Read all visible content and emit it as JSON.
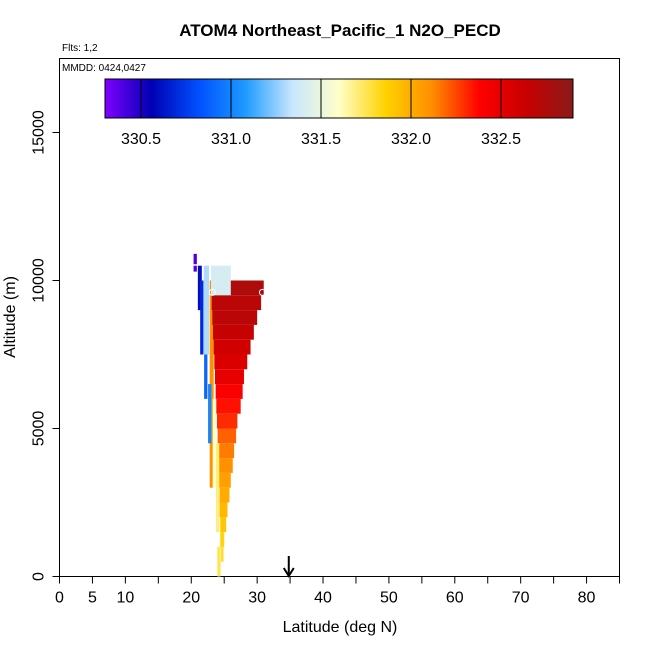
{
  "chart_data": {
    "type": "heatmap",
    "title": "ATOM4 Northeast_Pacific_1 N2O_PECD",
    "flights_note": "Flts: 1,2",
    "dates_note": "MMDD: 0424,0427",
    "xlabel": "Latitude (deg N)",
    "ylabel": "Altitude (m)",
    "xlim": [
      0,
      85
    ],
    "ylim": [
      0,
      17500
    ],
    "x_ticks": [
      0,
      5,
      10,
      20,
      30,
      40,
      50,
      60,
      70,
      80
    ],
    "x_minor_ticks": [
      15,
      25,
      35,
      45,
      55,
      65,
      75,
      85
    ],
    "y_ticks": [
      0,
      5000,
      10000,
      15000
    ],
    "colorbar": {
      "min": 330.3,
      "max": 332.9,
      "ticks": [
        330.5,
        331.0,
        331.5,
        332.0,
        332.5
      ],
      "tick_labels": [
        "330.5",
        "331.0",
        "331.5",
        "332.0",
        "332.5"
      ],
      "colors": [
        "#7f00ff",
        "#0000b4",
        "#0050ff",
        "#1e9bff",
        "#c8e6ff",
        "#ffffc8",
        "#ffd200",
        "#ff8c00",
        "#ff0000",
        "#c80000",
        "#8b1a1a"
      ]
    },
    "marker": {
      "latitude": 34.8,
      "label": "down arrow"
    },
    "series": [
      {
        "bins": [
          {
            "lat": 20.6,
            "alt_lo": 10550,
            "alt_hi": 10900,
            "value": 330.4,
            "w": 0.5
          },
          {
            "lat": 20.6,
            "alt_lo": 10300,
            "alt_hi": 10500,
            "value": 330.4,
            "w": 0.5
          },
          {
            "lat": 21.3,
            "alt_lo": 9000,
            "alt_hi": 10500,
            "value": 330.6,
            "w": 0.6
          },
          {
            "lat": 21.6,
            "alt_lo": 7500,
            "alt_hi": 10000,
            "value": 330.7,
            "w": 0.5
          },
          {
            "lat": 22.2,
            "alt_lo": 6000,
            "alt_hi": 8000,
            "value": 330.9,
            "w": 0.5
          },
          {
            "lat": 22.8,
            "alt_lo": 4500,
            "alt_hi": 6500,
            "value": 331.0,
            "w": 0.5
          },
          {
            "lat": 22.3,
            "alt_lo": 7500,
            "alt_hi": 10500,
            "value": 331.3,
            "w": 0.8
          },
          {
            "lat": 24.5,
            "alt_lo": 9500,
            "alt_hi": 10500,
            "value": 331.4,
            "w": 3.0
          },
          {
            "lat": 23.5,
            "alt_lo": 3000,
            "alt_hi": 6000,
            "value": 331.6,
            "w": 0.5
          },
          {
            "lat": 24.0,
            "alt_lo": 1500,
            "alt_hi": 4500,
            "value": 331.7,
            "w": 0.5
          },
          {
            "lat": 24.2,
            "alt_lo": 0,
            "alt_hi": 1000,
            "value": 331.75,
            "w": 0.5
          }
        ],
        "columns": [
          {
            "lat_lo": 22.8,
            "lat_hi": 23.4,
            "alt_lo": 3000,
            "alt_hi": 10000,
            "value": 332.1
          },
          {
            "lat_lo": 23.1,
            "lat_hi": 31.0,
            "alt_lo": 9500,
            "alt_hi": 10000,
            "value": 332.75
          },
          {
            "lat_lo": 23.1,
            "lat_hi": 30.6,
            "alt_lo": 9000,
            "alt_hi": 9500,
            "value": 332.7
          },
          {
            "lat_lo": 23.2,
            "lat_hi": 30.0,
            "alt_lo": 8500,
            "alt_hi": 9000,
            "value": 332.7
          },
          {
            "lat_lo": 23.3,
            "lat_hi": 29.5,
            "alt_lo": 8000,
            "alt_hi": 8500,
            "value": 332.65
          },
          {
            "lat_lo": 23.4,
            "lat_hi": 29.0,
            "alt_lo": 7500,
            "alt_hi": 8000,
            "value": 332.6
          },
          {
            "lat_lo": 23.5,
            "lat_hi": 28.5,
            "alt_lo": 7000,
            "alt_hi": 7500,
            "value": 332.55
          },
          {
            "lat_lo": 23.6,
            "lat_hi": 28.0,
            "alt_lo": 6500,
            "alt_hi": 7000,
            "value": 332.5
          },
          {
            "lat_lo": 23.7,
            "lat_hi": 27.8,
            "alt_lo": 6000,
            "alt_hi": 6500,
            "value": 332.4
          },
          {
            "lat_lo": 23.8,
            "lat_hi": 27.5,
            "alt_lo": 5500,
            "alt_hi": 6000,
            "value": 332.35
          },
          {
            "lat_lo": 23.9,
            "lat_hi": 27.0,
            "alt_lo": 5000,
            "alt_hi": 5500,
            "value": 332.3
          },
          {
            "lat_lo": 24.0,
            "lat_hi": 26.8,
            "alt_lo": 4500,
            "alt_hi": 5000,
            "value": 332.2
          },
          {
            "lat_lo": 24.0,
            "lat_hi": 26.5,
            "alt_lo": 4000,
            "alt_hi": 4500,
            "value": 332.15
          },
          {
            "lat_lo": 24.1,
            "lat_hi": 26.3,
            "alt_lo": 3500,
            "alt_hi": 4000,
            "value": 332.1
          },
          {
            "lat_lo": 24.2,
            "lat_hi": 26.0,
            "alt_lo": 3000,
            "alt_hi": 3500,
            "value": 332.05
          },
          {
            "lat_lo": 24.3,
            "lat_hi": 25.8,
            "alt_lo": 2500,
            "alt_hi": 3000,
            "value": 332.0
          },
          {
            "lat_lo": 24.3,
            "lat_hi": 25.5,
            "alt_lo": 2000,
            "alt_hi": 2500,
            "value": 331.95
          },
          {
            "lat_lo": 24.4,
            "lat_hi": 25.3,
            "alt_lo": 1500,
            "alt_hi": 2000,
            "value": 331.9
          },
          {
            "lat_lo": 24.4,
            "lat_hi": 25.0,
            "alt_lo": 1000,
            "alt_hi": 1500,
            "value": 331.85
          },
          {
            "lat_lo": 24.5,
            "lat_hi": 24.9,
            "alt_lo": 500,
            "alt_hi": 1000,
            "value": 331.8
          }
        ],
        "circles": [
          {
            "lat": 23.2,
            "alt": 9600
          },
          {
            "lat": 30.8,
            "alt": 9600
          }
        ]
      }
    ]
  }
}
